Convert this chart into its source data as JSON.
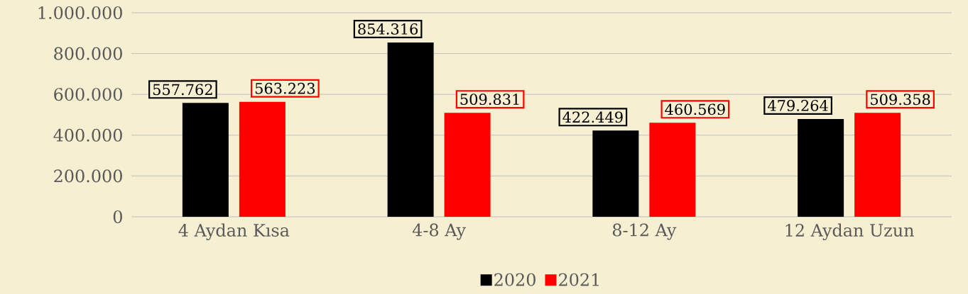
{
  "chart_data": {
    "type": "bar",
    "categories": [
      "4 Aydan Kısa",
      "4-8 Ay",
      "8-12 Ay",
      "12 Aydan Uzun"
    ],
    "series": [
      {
        "name": "2020",
        "color": "#000000",
        "values": [
          557762,
          854316,
          422449,
          479264
        ],
        "value_labels": [
          "557.762",
          "854.316",
          "422.449",
          "479.264"
        ]
      },
      {
        "name": "2021",
        "color": "#ff0000",
        "values": [
          563223,
          509831,
          460569,
          509358
        ],
        "value_labels": [
          "563.223",
          "509.831",
          "460.569",
          "509.358"
        ]
      }
    ],
    "ylim": [
      0,
      1000000
    ],
    "yticks": [
      0,
      {
        "value": 200000,
        "label": "200.000"
      },
      {
        "value": 400000,
        "label": "400.000"
      },
      {
        "value": 600000,
        "label": "600.000"
      },
      {
        "value": 800000,
        "label": "800.000"
      },
      {
        "value": 1000000,
        "label": "1.000.000"
      }
    ],
    "grid": "y",
    "legend": "bottom"
  }
}
